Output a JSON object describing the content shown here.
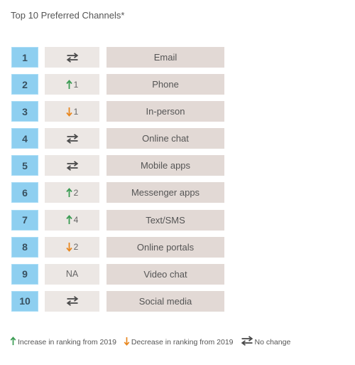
{
  "title": "Top 10 Preferred Channels*",
  "colors": {
    "increase": "#3a9b52",
    "decrease": "#e8871e",
    "nochange": "#4a4a4a",
    "rank_fill": "#8ecff0",
    "change_fill": "#ece7e4",
    "channel_fill": "#e2d9d5"
  },
  "chart_data": {
    "type": "table",
    "columns": [
      "Rank",
      "Change",
      "Channel"
    ],
    "rows": [
      {
        "rank": "1",
        "change": "none",
        "change_amount": "",
        "channel": "Email"
      },
      {
        "rank": "2",
        "change": "up",
        "change_amount": "1",
        "channel": "Phone"
      },
      {
        "rank": "3",
        "change": "down",
        "change_amount": "1",
        "channel": "In-person"
      },
      {
        "rank": "4",
        "change": "none",
        "change_amount": "",
        "channel": "Online chat"
      },
      {
        "rank": "5",
        "change": "none",
        "change_amount": "",
        "channel": "Mobile apps"
      },
      {
        "rank": "6",
        "change": "up",
        "change_amount": "2",
        "channel": "Messenger apps"
      },
      {
        "rank": "7",
        "change": "up",
        "change_amount": "4",
        "channel": "Text/SMS"
      },
      {
        "rank": "8",
        "change": "down",
        "change_amount": "2",
        "channel": "Online portals"
      },
      {
        "rank": "9",
        "change": "na",
        "change_amount": "NA",
        "channel": "Video chat"
      },
      {
        "rank": "10",
        "change": "none",
        "change_amount": "",
        "channel": "Social media"
      }
    ]
  },
  "legend": {
    "increase": {
      "icon": "arrow-up-icon",
      "label": "Increase in ranking from 2019"
    },
    "decrease": {
      "icon": "arrow-down-icon",
      "label": "Decrease in ranking from 2019"
    },
    "nochange": {
      "icon": "swap-arrows-icon",
      "label": "No change"
    }
  }
}
